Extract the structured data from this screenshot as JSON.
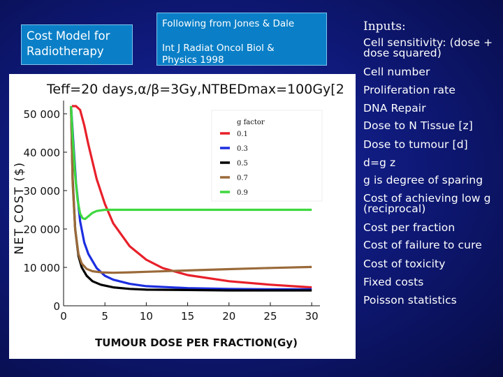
{
  "title_box": {
    "line1": "Cost Model for",
    "line2": "Radiotherapy"
  },
  "reference_box": {
    "line1": "Following from Jones & Dale",
    "line2": "Int J Radiat Oncol Biol &",
    "line3": "Physics 1998"
  },
  "inputs": {
    "heading": "Inputs:",
    "items": [
      "Cell sensitivity: (dose + dose squared)",
      "Cell number",
      "Proliferation rate",
      "DNA Repair",
      "Dose to N Tissue [z]",
      "Dose to tumour [d]",
      "d=g z",
      "g is degree of sparing",
      "Cost of achieving low g (reciprocal)",
      "Cost per fraction",
      "Cost of failure to cure",
      "Cost of toxicity",
      "Fixed costs",
      "Poisson statistics"
    ]
  },
  "chart_data": {
    "type": "line",
    "title": "Teff=20 days,α/β=3Gy,NTBEDmax=100Gy[2",
    "xlabel": "TUMOUR DOSE PER FRACTION(Gy)",
    "ylabel": "NET COST ($)",
    "xlim": [
      0,
      31
    ],
    "ylim": [
      0,
      52000
    ],
    "x_ticks": [
      0,
      5,
      10,
      15,
      20,
      25,
      30
    ],
    "x_tick_labels": [
      "0",
      "5",
      "10",
      "15",
      "20",
      "25",
      "30"
    ],
    "y_ticks": [
      0,
      10000,
      20000,
      30000,
      40000,
      50000
    ],
    "y_tick_labels": [
      "0",
      "10 000",
      "20 000",
      "30 000",
      "40 000",
      "50 000"
    ],
    "grid": false,
    "legend_title": "g factor",
    "legend_position": "top-right",
    "series": [
      {
        "name": "0.1",
        "color": "#e8202a",
        "x": [
          1.0,
          1.5,
          2,
          2.5,
          3,
          4,
          5,
          6,
          8,
          10,
          12,
          15,
          20,
          25,
          30
        ],
        "y": [
          52000,
          52000,
          51000,
          47000,
          42000,
          33000,
          26500,
          21500,
          15500,
          12000,
          9800,
          8000,
          6400,
          5500,
          4800
        ]
      },
      {
        "name": "0.3",
        "color": "#1c2ee0",
        "x": [
          0.9,
          1.2,
          1.5,
          2,
          2.5,
          3,
          4,
          5,
          6,
          8,
          10,
          15,
          20,
          25,
          30
        ],
        "y": [
          52000,
          42000,
          32000,
          22000,
          16500,
          13500,
          9800,
          7800,
          6800,
          5700,
          5100,
          4600,
          4400,
          4300,
          4300
        ]
      },
      {
        "name": "0.5",
        "color": "#000000",
        "x": [
          0.9,
          1.1,
          1.4,
          1.8,
          2.2,
          2.8,
          3.5,
          4.5,
          6,
          8,
          10,
          15,
          20,
          25,
          30
        ],
        "y": [
          52000,
          33000,
          20000,
          13000,
          10000,
          7800,
          6400,
          5500,
          4800,
          4400,
          4200,
          4100,
          4000,
          4000,
          4000
        ]
      },
      {
        "name": "0.7",
        "color": "#9a6a3a",
        "x": [
          0.9,
          1.1,
          1.4,
          1.8,
          2.2,
          2.8,
          3.5,
          4.5,
          6,
          8,
          10,
          15,
          20,
          25,
          30
        ],
        "y": [
          52000,
          32000,
          20000,
          13500,
          11000,
          9600,
          9000,
          8700,
          8600,
          8700,
          8850,
          9200,
          9550,
          9850,
          10100
        ]
      },
      {
        "name": "0.9",
        "color": "#3ed83e",
        "x": [
          0.9,
          1.1,
          1.4,
          1.7,
          2,
          2.3,
          2.6,
          3,
          3.5,
          4,
          5,
          6,
          8,
          10,
          15,
          20,
          25,
          30
        ],
        "y": [
          52000,
          44000,
          34000,
          27500,
          24000,
          22800,
          22600,
          23300,
          24200,
          24700,
          25000,
          25000,
          25000,
          25000,
          25000,
          25000,
          25000,
          25000
        ]
      }
    ]
  }
}
